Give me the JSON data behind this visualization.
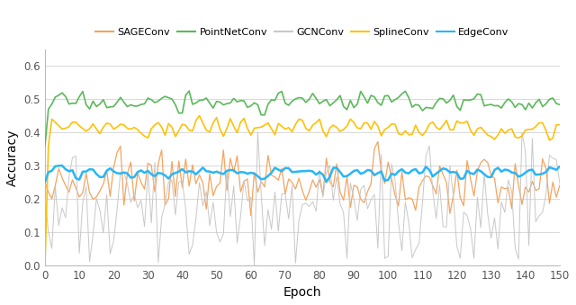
{
  "title": "",
  "xlabel": "Epoch",
  "ylabel": "Accuracy",
  "xlim": [
    0,
    150
  ],
  "ylim": [
    0,
    0.65
  ],
  "yticks": [
    0,
    0.1,
    0.2,
    0.3,
    0.4,
    0.5,
    0.6
  ],
  "xticks": [
    0,
    10,
    20,
    30,
    40,
    50,
    60,
    70,
    80,
    90,
    100,
    110,
    120,
    130,
    140,
    150
  ],
  "series": {
    "SAGEConv": {
      "color": "#F4A460",
      "lw": 0.9
    },
    "PointNetConv": {
      "color": "#5CB85C",
      "lw": 1.2
    },
    "GCNConv": {
      "color": "#C8C8C8",
      "lw": 0.7
    },
    "SplineConv": {
      "color": "#FFC107",
      "lw": 1.2
    },
    "EdgeConv": {
      "color": "#29B6F6",
      "lw": 1.8
    }
  },
  "legend_order": [
    "SAGEConv",
    "PointNetConv",
    "GCNConv",
    "SplineConv",
    "EdgeConv"
  ],
  "seed": 17
}
